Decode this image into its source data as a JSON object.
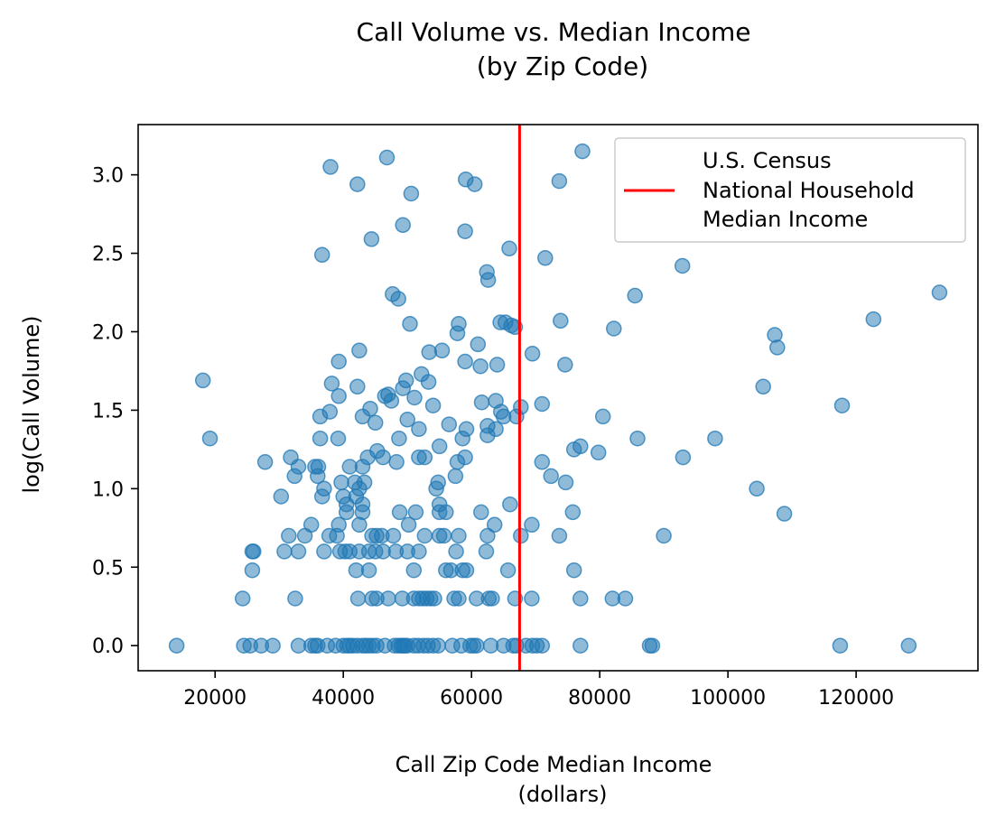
{
  "chart_data": {
    "type": "scatter",
    "title": "Call Volume vs. Median Income",
    "subtitle": "(by Zip Code)",
    "xlabel": "Call Zip Code Median Income",
    "xlabel_unit": "(dollars)",
    "ylabel": "log(Call Volume)",
    "xlim": [
      8000,
      139000
    ],
    "ylim": [
      -0.16,
      3.32
    ],
    "xticks": [
      20000,
      40000,
      60000,
      80000,
      100000,
      120000
    ],
    "xtick_labels": [
      "20000",
      "40000",
      "60000",
      "80000",
      "100000",
      "120000"
    ],
    "yticks": [
      0.0,
      0.5,
      1.0,
      1.5,
      2.0,
      2.5,
      3.0
    ],
    "ytick_labels": [
      "0.0",
      "0.5",
      "1.0",
      "1.5",
      "2.0",
      "2.5",
      "3.0"
    ],
    "grid": false,
    "legend_position": "top-right",
    "legend_lines": [
      "U.S. Census",
      "National Household",
      "Median Income"
    ],
    "reference_line": {
      "x": 67500,
      "color": "#ff0000"
    },
    "point_color": "#1f77b4",
    "point_alpha": 0.5,
    "points": [
      [
        14000,
        0.0
      ],
      [
        24500,
        0.0
      ],
      [
        25500,
        0.0
      ],
      [
        27200,
        0.0
      ],
      [
        29000,
        0.0
      ],
      [
        33000,
        0.0
      ],
      [
        35000,
        0.0
      ],
      [
        35600,
        0.0
      ],
      [
        36000,
        0.0
      ],
      [
        37500,
        0.0
      ],
      [
        38800,
        0.0
      ],
      [
        40000,
        0.0
      ],
      [
        40600,
        0.0
      ],
      [
        41000,
        0.0
      ],
      [
        41500,
        0.0
      ],
      [
        42200,
        0.0
      ],
      [
        43000,
        0.0
      ],
      [
        43500,
        0.0
      ],
      [
        44000,
        0.0
      ],
      [
        44600,
        0.0
      ],
      [
        45200,
        0.0
      ],
      [
        46500,
        0.0
      ],
      [
        48000,
        0.0
      ],
      [
        48600,
        0.0
      ],
      [
        49000,
        0.0
      ],
      [
        49300,
        0.0
      ],
      [
        49600,
        0.0
      ],
      [
        50000,
        0.0
      ],
      [
        51000,
        0.0
      ],
      [
        51700,
        0.0
      ],
      [
        52500,
        0.0
      ],
      [
        53200,
        0.0
      ],
      [
        54000,
        0.0
      ],
      [
        54800,
        0.0
      ],
      [
        57000,
        0.0
      ],
      [
        58400,
        0.0
      ],
      [
        59800,
        0.0
      ],
      [
        60300,
        0.0
      ],
      [
        60800,
        0.0
      ],
      [
        63000,
        0.0
      ],
      [
        65000,
        0.0
      ],
      [
        66500,
        0.0
      ],
      [
        67000,
        0.0
      ],
      [
        68500,
        0.0
      ],
      [
        69500,
        0.0
      ],
      [
        70200,
        0.0
      ],
      [
        71000,
        0.0
      ],
      [
        77000,
        0.0
      ],
      [
        87800,
        0.0
      ],
      [
        88200,
        0.0
      ],
      [
        117500,
        0.0
      ],
      [
        128200,
        0.0
      ],
      [
        24300,
        0.3
      ],
      [
        32500,
        0.3
      ],
      [
        42300,
        0.3
      ],
      [
        44500,
        0.3
      ],
      [
        45200,
        0.3
      ],
      [
        47000,
        0.3
      ],
      [
        49200,
        0.3
      ],
      [
        51000,
        0.3
      ],
      [
        51800,
        0.3
      ],
      [
        52400,
        0.3
      ],
      [
        53000,
        0.3
      ],
      [
        53600,
        0.3
      ],
      [
        54200,
        0.3
      ],
      [
        57300,
        0.3
      ],
      [
        58000,
        0.3
      ],
      [
        60800,
        0.3
      ],
      [
        62700,
        0.3
      ],
      [
        63200,
        0.3
      ],
      [
        66800,
        0.3
      ],
      [
        69400,
        0.3
      ],
      [
        77000,
        0.3
      ],
      [
        82000,
        0.3
      ],
      [
        84000,
        0.3
      ],
      [
        25800,
        0.48
      ],
      [
        42000,
        0.48
      ],
      [
        44000,
        0.48
      ],
      [
        51000,
        0.48
      ],
      [
        56000,
        0.48
      ],
      [
        56800,
        0.48
      ],
      [
        58600,
        0.48
      ],
      [
        59200,
        0.48
      ],
      [
        65700,
        0.48
      ],
      [
        76000,
        0.48
      ],
      [
        25800,
        0.6
      ],
      [
        26000,
        0.6
      ],
      [
        30800,
        0.6
      ],
      [
        33000,
        0.6
      ],
      [
        37000,
        0.6
      ],
      [
        39500,
        0.6
      ],
      [
        40300,
        0.6
      ],
      [
        41000,
        0.6
      ],
      [
        42500,
        0.6
      ],
      [
        44000,
        0.6
      ],
      [
        45000,
        0.6
      ],
      [
        46200,
        0.6
      ],
      [
        48200,
        0.6
      ],
      [
        50000,
        0.6
      ],
      [
        51800,
        0.6
      ],
      [
        57600,
        0.6
      ],
      [
        62300,
        0.6
      ],
      [
        31500,
        0.7
      ],
      [
        34000,
        0.7
      ],
      [
        37800,
        0.7
      ],
      [
        39000,
        0.7
      ],
      [
        44500,
        0.7
      ],
      [
        45200,
        0.7
      ],
      [
        46000,
        0.7
      ],
      [
        47800,
        0.7
      ],
      [
        52700,
        0.7
      ],
      [
        55000,
        0.7
      ],
      [
        55700,
        0.7
      ],
      [
        58000,
        0.7
      ],
      [
        62500,
        0.7
      ],
      [
        67700,
        0.7
      ],
      [
        73700,
        0.7
      ],
      [
        90000,
        0.7
      ],
      [
        35000,
        0.77
      ],
      [
        39300,
        0.77
      ],
      [
        42500,
        0.77
      ],
      [
        50200,
        0.77
      ],
      [
        63600,
        0.77
      ],
      [
        69400,
        0.77
      ],
      [
        40500,
        0.85
      ],
      [
        43000,
        0.85
      ],
      [
        48800,
        0.85
      ],
      [
        51300,
        0.85
      ],
      [
        55000,
        0.85
      ],
      [
        56000,
        0.85
      ],
      [
        61500,
        0.85
      ],
      [
        75800,
        0.85
      ],
      [
        108800,
        0.84
      ],
      [
        40500,
        0.9
      ],
      [
        43000,
        0.9
      ],
      [
        55000,
        0.9
      ],
      [
        66000,
        0.9
      ],
      [
        30300,
        0.95
      ],
      [
        36700,
        0.95
      ],
      [
        40000,
        0.95
      ],
      [
        42000,
        0.95
      ],
      [
        37000,
        1.0
      ],
      [
        42500,
        1.0
      ],
      [
        54500,
        1.0
      ],
      [
        104500,
        1.0
      ],
      [
        32400,
        1.08
      ],
      [
        36000,
        1.08
      ],
      [
        39700,
        1.04
      ],
      [
        41800,
        1.04
      ],
      [
        43300,
        1.04
      ],
      [
        54800,
        1.04
      ],
      [
        57500,
        1.08
      ],
      [
        72400,
        1.08
      ],
      [
        74700,
        1.04
      ],
      [
        27800,
        1.17
      ],
      [
        31800,
        1.2
      ],
      [
        35600,
        1.14
      ],
      [
        36100,
        1.14
      ],
      [
        41000,
        1.14
      ],
      [
        43000,
        1.14
      ],
      [
        43800,
        1.2
      ],
      [
        45300,
        1.24
      ],
      [
        46200,
        1.2
      ],
      [
        48300,
        1.17
      ],
      [
        51800,
        1.2
      ],
      [
        52700,
        1.2
      ],
      [
        57800,
        1.17
      ],
      [
        59000,
        1.2
      ],
      [
        71000,
        1.17
      ],
      [
        93000,
        1.2
      ],
      [
        19200,
        1.32
      ],
      [
        33000,
        1.14
      ],
      [
        36400,
        1.32
      ],
      [
        39200,
        1.32
      ],
      [
        48700,
        1.32
      ],
      [
        55000,
        1.27
      ],
      [
        58600,
        1.32
      ],
      [
        62500,
        1.34
      ],
      [
        63800,
        1.38
      ],
      [
        76000,
        1.25
      ],
      [
        77000,
        1.27
      ],
      [
        79800,
        1.23
      ],
      [
        85900,
        1.32
      ],
      [
        98000,
        1.32
      ],
      [
        36400,
        1.46
      ],
      [
        37900,
        1.49
      ],
      [
        43000,
        1.46
      ],
      [
        44200,
        1.51
      ],
      [
        45000,
        1.42
      ],
      [
        47500,
        1.56
      ],
      [
        50000,
        1.44
      ],
      [
        51800,
        1.38
      ],
      [
        54000,
        1.53
      ],
      [
        56500,
        1.41
      ],
      [
        59200,
        1.38
      ],
      [
        62500,
        1.4
      ],
      [
        64600,
        1.49
      ],
      [
        65000,
        1.46
      ],
      [
        67000,
        1.46
      ],
      [
        67700,
        1.52
      ],
      [
        71000,
        1.54
      ],
      [
        80500,
        1.46
      ],
      [
        18100,
        1.69
      ],
      [
        38200,
        1.67
      ],
      [
        39300,
        1.59
      ],
      [
        42200,
        1.65
      ],
      [
        46500,
        1.59
      ],
      [
        47000,
        1.6
      ],
      [
        49300,
        1.64
      ],
      [
        49800,
        1.69
      ],
      [
        51100,
        1.58
      ],
      [
        52200,
        1.73
      ],
      [
        53300,
        1.68
      ],
      [
        61600,
        1.55
      ],
      [
        63800,
        1.56
      ],
      [
        105500,
        1.65
      ],
      [
        117800,
        1.53
      ],
      [
        39300,
        1.81
      ],
      [
        42500,
        1.88
      ],
      [
        53400,
        1.87
      ],
      [
        55400,
        1.88
      ],
      [
        59000,
        1.81
      ],
      [
        61000,
        1.92
      ],
      [
        61400,
        1.78
      ],
      [
        64000,
        1.79
      ],
      [
        69500,
        1.86
      ],
      [
        74600,
        1.79
      ],
      [
        107300,
        1.98
      ],
      [
        107700,
        1.9
      ],
      [
        50400,
        2.05
      ],
      [
        57800,
        1.99
      ],
      [
        58000,
        2.05
      ],
      [
        64500,
        2.06
      ],
      [
        65300,
        2.06
      ],
      [
        66200,
        2.04
      ],
      [
        66800,
        2.03
      ],
      [
        73900,
        2.07
      ],
      [
        82200,
        2.02
      ],
      [
        85500,
        2.23
      ],
      [
        122700,
        2.08
      ],
      [
        133000,
        2.25
      ],
      [
        47700,
        2.24
      ],
      [
        48600,
        2.21
      ],
      [
        62400,
        2.38
      ],
      [
        62600,
        2.33
      ],
      [
        36700,
        2.49
      ],
      [
        44400,
        2.59
      ],
      [
        65900,
        2.53
      ],
      [
        71500,
        2.47
      ],
      [
        92900,
        2.42
      ],
      [
        49300,
        2.68
      ],
      [
        59000,
        2.64
      ],
      [
        38000,
        3.05
      ],
      [
        42200,
        2.94
      ],
      [
        46800,
        3.11
      ],
      [
        50600,
        2.88
      ],
      [
        59100,
        2.97
      ],
      [
        60500,
        2.94
      ],
      [
        73700,
        2.96
      ],
      [
        77300,
        3.15
      ]
    ]
  }
}
